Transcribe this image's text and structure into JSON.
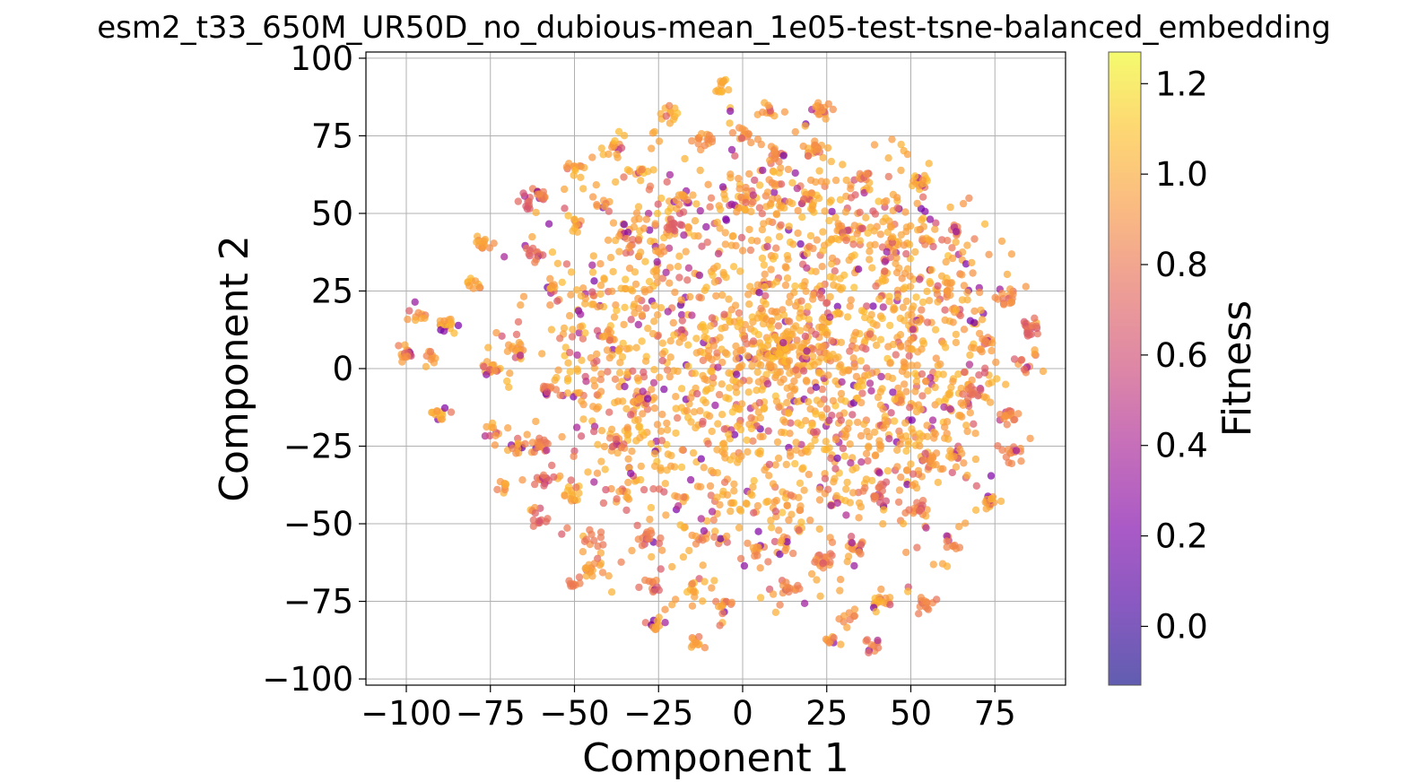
{
  "chart_data": {
    "type": "scatter",
    "title": "esm2_t33_650M_UR50D_no_dubious-mean_1e05-test-tsne-balanced_embedding",
    "xlabel": "Component 1",
    "ylabel": "Component 2",
    "xlim": [
      -112,
      96
    ],
    "ylim": [
      -102,
      102
    ],
    "xticks": [
      -100,
      -75,
      -50,
      -25,
      0,
      25,
      50,
      75
    ],
    "xtick_labels": [
      "−100",
      "−75",
      "−50",
      "−25",
      "0",
      "25",
      "50",
      "75"
    ],
    "yticks": [
      -100,
      -75,
      -50,
      -25,
      0,
      25,
      50,
      75,
      100
    ],
    "ytick_labels": [
      "−100",
      "−75",
      "−50",
      "−25",
      "0",
      "25",
      "50",
      "75",
      "100"
    ],
    "grid": true,
    "colorbar": {
      "label": "Fitness",
      "colormap": "plasma",
      "range": [
        -0.13,
        1.27
      ],
      "ticks": [
        0.0,
        0.2,
        0.4,
        0.6,
        0.8,
        1.0,
        1.2
      ],
      "tick_labels": [
        "0.0",
        "0.2",
        "0.4",
        "0.6",
        "0.8",
        "1.0",
        "1.2"
      ]
    },
    "clusters": [
      {
        "x": -6,
        "y": 91,
        "fitness": 1.0
      },
      {
        "x": 8,
        "y": 83,
        "fitness": 0.95
      },
      {
        "x": -22,
        "y": 82,
        "fitness": 1.0
      },
      {
        "x": 24,
        "y": 83,
        "fitness": 0.9
      },
      {
        "x": -38,
        "y": 71,
        "fitness": 1.0
      },
      {
        "x": -12,
        "y": 74,
        "fitness": 0.9
      },
      {
        "x": 0,
        "y": 75,
        "fitness": 0.95
      },
      {
        "x": 10,
        "y": 69,
        "fitness": 0.9
      },
      {
        "x": 22,
        "y": 71,
        "fitness": 0.95
      },
      {
        "x": -30,
        "y": 63,
        "fitness": 1.0
      },
      {
        "x": -50,
        "y": 65,
        "fitness": 1.0
      },
      {
        "x": 36,
        "y": 62,
        "fitness": 0.9
      },
      {
        "x": 53,
        "y": 60,
        "fitness": 1.0
      },
      {
        "x": -60,
        "y": 56,
        "fitness": 0.85
      },
      {
        "x": -64,
        "y": 53,
        "fitness": 0.7
      },
      {
        "x": -42,
        "y": 53,
        "fitness": 0.95
      },
      {
        "x": -18,
        "y": 55,
        "fitness": 0.95
      },
      {
        "x": 2,
        "y": 55,
        "fitness": 0.9
      },
      {
        "x": 20,
        "y": 54,
        "fitness": 1.0
      },
      {
        "x": -77,
        "y": 41,
        "fitness": 0.95
      },
      {
        "x": -51,
        "y": 46,
        "fitness": 1.0
      },
      {
        "x": -34,
        "y": 42,
        "fitness": 0.9
      },
      {
        "x": -21,
        "y": 46,
        "fitness": 0.7
      },
      {
        "x": 63,
        "y": 44,
        "fitness": 0.8
      },
      {
        "x": 44,
        "y": 42,
        "fitness": 1.0
      },
      {
        "x": 30,
        "y": 44,
        "fitness": 0.95
      },
      {
        "x": -80,
        "y": 27,
        "fitness": 1.0
      },
      {
        "x": -62,
        "y": 37,
        "fitness": 0.8
      },
      {
        "x": 78,
        "y": 23,
        "fitness": 0.9
      },
      {
        "x": -56,
        "y": 26,
        "fitness": 1.0
      },
      {
        "x": -96,
        "y": 17,
        "fitness": 0.95
      },
      {
        "x": -88,
        "y": 14,
        "fitness": 1.0
      },
      {
        "x": -100,
        "y": 5,
        "fitness": 0.9
      },
      {
        "x": -93,
        "y": 4,
        "fitness": 0.95
      },
      {
        "x": -90,
        "y": -15,
        "fitness": 1.0
      },
      {
        "x": -75,
        "y": 0,
        "fitness": 1.0
      },
      {
        "x": -68,
        "y": 6,
        "fitness": 0.95
      },
      {
        "x": 85,
        "y": 13,
        "fitness": 0.7
      },
      {
        "x": 84,
        "y": 1,
        "fitness": 0.8
      },
      {
        "x": 72,
        "y": 8,
        "fitness": 0.9
      },
      {
        "x": 79,
        "y": -15,
        "fitness": 0.9
      },
      {
        "x": 81,
        "y": -27,
        "fitness": 0.85
      },
      {
        "x": -73,
        "y": -20,
        "fitness": 1.0
      },
      {
        "x": -67,
        "y": -25,
        "fitness": 0.95
      },
      {
        "x": -58,
        "y": -7,
        "fitness": 0.9
      },
      {
        "x": -60,
        "y": -25,
        "fitness": 0.85
      },
      {
        "x": -59,
        "y": -35,
        "fitness": 0.75
      },
      {
        "x": -72,
        "y": -38,
        "fitness": 0.95
      },
      {
        "x": -50,
        "y": -40,
        "fitness": 1.0
      },
      {
        "x": -36,
        "y": -40,
        "fitness": 0.95
      },
      {
        "x": -60,
        "y": -49,
        "fitness": 0.7
      },
      {
        "x": -44,
        "y": -55,
        "fitness": 0.85
      },
      {
        "x": -45,
        "y": -65,
        "fitness": 0.95
      },
      {
        "x": -50,
        "y": -69,
        "fitness": 0.8
      },
      {
        "x": -28,
        "y": -69,
        "fitness": 0.85
      },
      {
        "x": -28,
        "y": -55,
        "fitness": 0.8
      },
      {
        "x": -12,
        "y": -55,
        "fitness": 0.9
      },
      {
        "x": -14,
        "y": -71,
        "fitness": 1.0
      },
      {
        "x": -5,
        "y": -77,
        "fitness": 0.95
      },
      {
        "x": 14,
        "y": -71,
        "fitness": 0.85
      },
      {
        "x": 26,
        "y": -88,
        "fitness": 0.95
      },
      {
        "x": 32,
        "y": -80,
        "fitness": 0.9
      },
      {
        "x": 38,
        "y": -90,
        "fitness": 0.8
      },
      {
        "x": 40,
        "y": -75,
        "fitness": 1.0
      },
      {
        "x": 55,
        "y": -75,
        "fitness": 0.85
      },
      {
        "x": -26,
        "y": -83,
        "fitness": 0.95
      },
      {
        "x": -14,
        "y": -88,
        "fitness": 0.95
      },
      {
        "x": 4,
        "y": -58,
        "fitness": 0.9
      },
      {
        "x": 12,
        "y": -56,
        "fitness": 0.95
      },
      {
        "x": 24,
        "y": -62,
        "fitness": 0.85
      },
      {
        "x": 34,
        "y": -58,
        "fitness": 0.9
      },
      {
        "x": 62,
        "y": -56,
        "fitness": 0.9
      },
      {
        "x": 52,
        "y": -46,
        "fitness": 0.85
      },
      {
        "x": 73,
        "y": -43,
        "fitness": 0.95
      },
      {
        "x": 56,
        "y": -30,
        "fitness": 0.95
      },
      {
        "x": 68,
        "y": -8,
        "fitness": 0.8
      },
      {
        "x": 63,
        "y": -28,
        "fitness": 0.95
      },
      {
        "x": -38,
        "y": -25,
        "fitness": 0.9
      },
      {
        "x": 40,
        "y": -40,
        "fitness": 0.8
      },
      {
        "x": 46,
        "y": -10,
        "fitness": 1.0
      },
      {
        "x": 52,
        "y": 15,
        "fitness": 0.95
      },
      {
        "x": 60,
        "y": 25,
        "fitness": 0.9
      },
      {
        "x": -40,
        "y": 10,
        "fitness": 0.95
      },
      {
        "x": -30,
        "y": -10,
        "fitness": 1.0
      }
    ]
  }
}
